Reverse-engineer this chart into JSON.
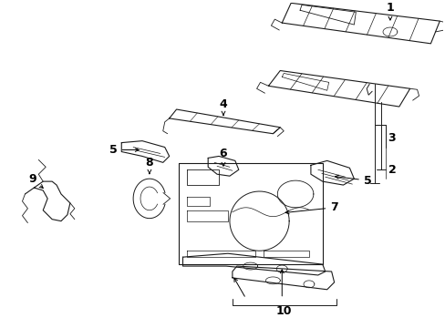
{
  "background_color": "#ffffff",
  "line_color": "#1a1a1a",
  "fig_width": 4.89,
  "fig_height": 3.6,
  "dpi": 100,
  "lw": 0.8
}
